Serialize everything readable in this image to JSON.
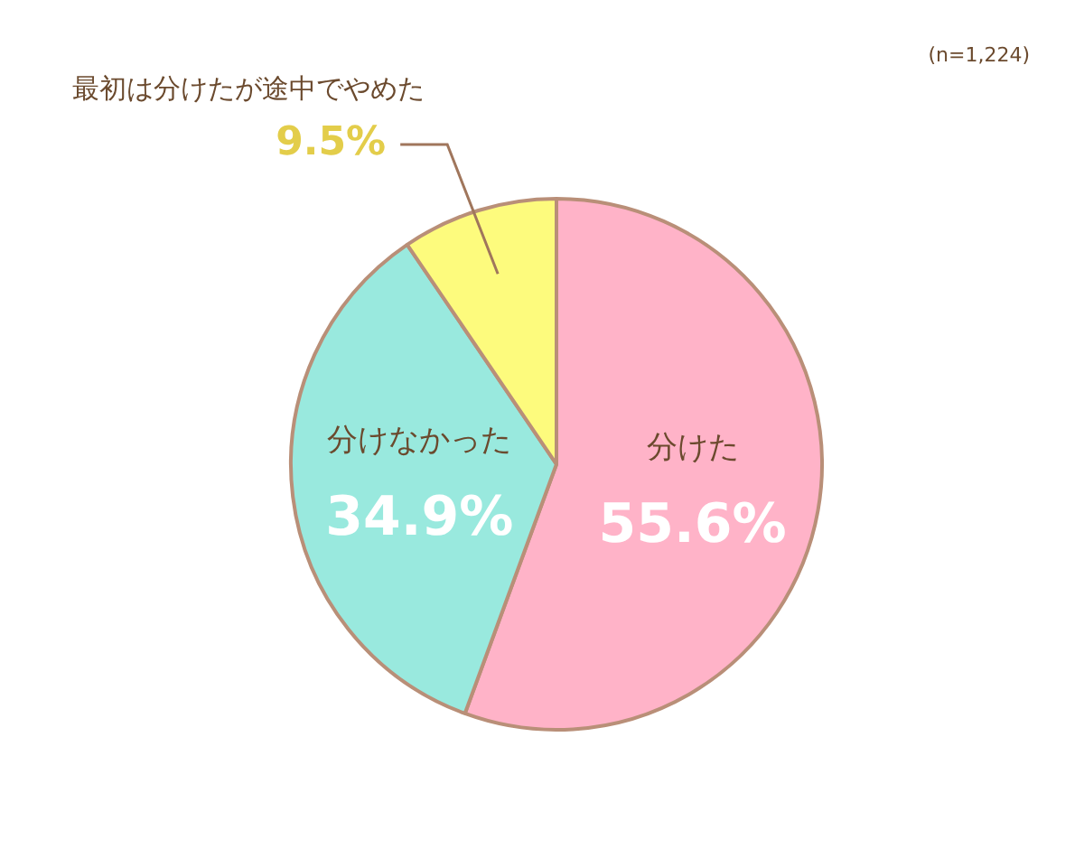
{
  "chart_data": {
    "type": "pie",
    "categories": [
      "分けた",
      "分けなかった",
      "最初は分けたが途中でやめた"
    ],
    "values": [
      55.6,
      34.9,
      9.5
    ],
    "colors": [
      "#ffb3c8",
      "#99e9de",
      "#fdfb7d"
    ],
    "value_labels": [
      "55.6%",
      "34.9%",
      "9.5%"
    ],
    "annotations": [
      "(n=1,224)"
    ],
    "legend": false
  }
}
